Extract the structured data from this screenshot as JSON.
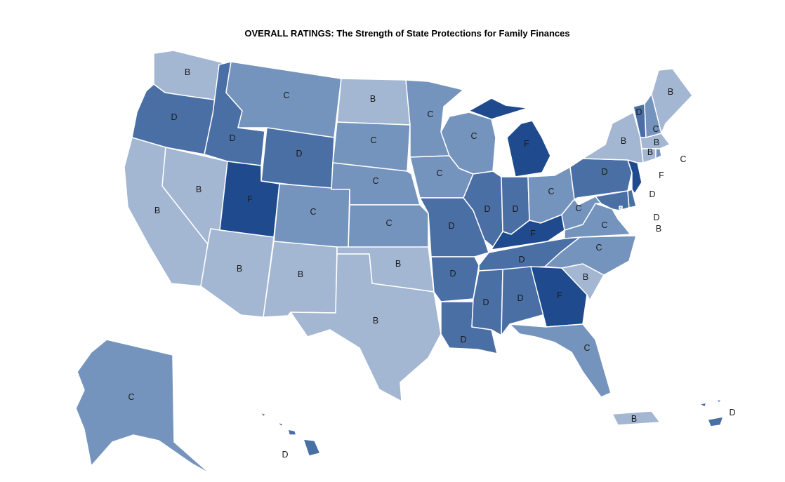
{
  "title": "OVERALL RATINGS: The Strength of State Protections for Family Finances",
  "grade_colors": {
    "B": "#a3b6d2",
    "C": "#7594bd",
    "D": "#4a6fa5",
    "F": "#1f4b8e"
  },
  "states": {
    "WA": {
      "grade": "B"
    },
    "OR": {
      "grade": "D"
    },
    "CA": {
      "grade": "B"
    },
    "NV": {
      "grade": "B"
    },
    "ID": {
      "grade": "D"
    },
    "MT": {
      "grade": "C"
    },
    "WY": {
      "grade": "D"
    },
    "UT": {
      "grade": "F"
    },
    "AZ": {
      "grade": "B"
    },
    "CO": {
      "grade": "C"
    },
    "NM": {
      "grade": "B"
    },
    "ND": {
      "grade": "B"
    },
    "SD": {
      "grade": "C"
    },
    "NE": {
      "grade": "C"
    },
    "KS": {
      "grade": "C"
    },
    "OK": {
      "grade": "B"
    },
    "TX": {
      "grade": "B"
    },
    "MN": {
      "grade": "C"
    },
    "IA": {
      "grade": "C"
    },
    "MO": {
      "grade": "D"
    },
    "AR": {
      "grade": "D"
    },
    "LA": {
      "grade": "D"
    },
    "WI": {
      "grade": "C"
    },
    "IL": {
      "grade": "D"
    },
    "MI": {
      "grade": "F"
    },
    "IN": {
      "grade": "D"
    },
    "OH": {
      "grade": "C"
    },
    "KY": {
      "grade": "F"
    },
    "TN": {
      "grade": "D"
    },
    "MS": {
      "grade": "D"
    },
    "AL": {
      "grade": "D"
    },
    "GA": {
      "grade": "F"
    },
    "FL": {
      "grade": "C"
    },
    "SC": {
      "grade": "B"
    },
    "NC": {
      "grade": "C"
    },
    "VA": {
      "grade": "C"
    },
    "WV": {
      "grade": "C"
    },
    "PA": {
      "grade": "D"
    },
    "NY": {
      "grade": "B"
    },
    "VT": {
      "grade": "D"
    },
    "NH": {
      "grade": "C"
    },
    "ME": {
      "grade": "B"
    },
    "MA": {
      "grade": "B"
    },
    "RI": {
      "grade": "C"
    },
    "CT": {
      "grade": "B"
    },
    "NJ": {
      "grade": "F"
    },
    "DE": {
      "grade": "D"
    },
    "MD": {
      "grade": "D"
    },
    "DC": {
      "grade": "B"
    },
    "AK": {
      "grade": "C"
    },
    "HI": {
      "grade": "D"
    },
    "PR": {
      "grade": "B"
    },
    "VI": {
      "grade": "D"
    }
  }
}
